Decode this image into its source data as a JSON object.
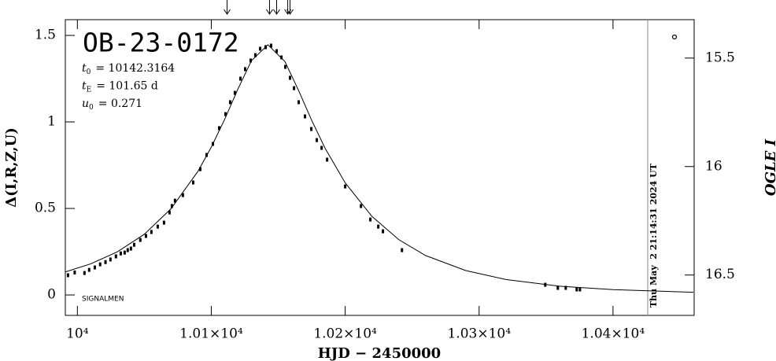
{
  "chart_data": {
    "type": "scatter",
    "title": "OB-23-0172",
    "xlabel": "HJD − 2450000",
    "ylabel": "Δ(I,R,Z,U)",
    "y2label": "OGLE I",
    "xlim": [
      9991,
      10460.6
    ],
    "ylim": [
      -0.118,
      1.591
    ],
    "y2lim": [
      16.686,
      15.323
    ],
    "xticks": [
      {
        "value": 10000,
        "label": "10⁴"
      },
      {
        "value": 10100,
        "label": "1.01×10⁴"
      },
      {
        "value": 10200,
        "label": "1.02×10⁴"
      },
      {
        "value": 10300,
        "label": "1.03×10⁴"
      },
      {
        "value": 10400,
        "label": "1.04×10⁴"
      }
    ],
    "yticks": [
      0,
      0.5,
      1,
      1.5
    ],
    "y2ticks": [
      15.5,
      16,
      16.5
    ],
    "params": [
      {
        "symbol": "t",
        "sub": "0",
        "text": "= 10142.3164"
      },
      {
        "symbol": "t",
        "sub": "E",
        "text": "= 101.65 d"
      },
      {
        "symbol": "u",
        "sub": "0",
        "text": "= 0.271"
      }
    ],
    "footnote": "SIGNALMEN",
    "timestamp": "Thu May  2 21:14:31 2024 UT",
    "timestamp_x": 10425.9,
    "arrows": [
      10111.8,
      10143.5,
      10148.8,
      10157.1,
      10158.8
    ],
    "series": [
      {
        "type": "scatter",
        "color": "#000000",
        "x": [
          9993,
          9998,
          10005.3,
          10008.8,
          10013,
          10017,
          10021,
          10024.7,
          10028.8,
          10032.4,
          10035.3,
          10037.6,
          10040,
          10042.4,
          10047,
          10051.2,
          10055.3,
          10060,
          10064.7,
          10068.8,
          10070.6,
          10072.9,
          10078.8,
          10086.5,
          10091.8,
          10096.5,
          10101.2,
          10105.9,
          10110.6,
          10114.1,
          10117.6,
          10121.8,
          10125.3,
          10129.4,
          10132.9,
          10136.5,
          10140.6,
          10144.7,
          10148.8,
          10152.4,
          10155.3,
          10158.8,
          10161.8,
          10165.3,
          10170,
          10174.7,
          10178.8,
          10182.4,
          10186.5,
          10200,
          10211.8,
          10218.8,
          10224.7,
          10228.2,
          10242.4,
          10349.4,
          10358.8,
          10364.7,
          10372.9,
          10375.3
        ],
        "values": [
          0.114,
          0.13,
          0.127,
          0.145,
          0.159,
          0.177,
          0.19,
          0.205,
          0.223,
          0.24,
          0.245,
          0.259,
          0.268,
          0.29,
          0.318,
          0.341,
          0.364,
          0.395,
          0.418,
          0.477,
          0.514,
          0.545,
          0.577,
          0.65,
          0.727,
          0.809,
          0.873,
          0.964,
          1.045,
          1.114,
          1.168,
          1.25,
          1.305,
          1.355,
          1.386,
          1.423,
          1.432,
          1.441,
          1.409,
          1.373,
          1.318,
          1.255,
          1.195,
          1.114,
          1.032,
          0.959,
          0.895,
          0.85,
          0.782,
          0.627,
          0.514,
          0.436,
          0.395,
          0.368,
          0.259,
          0.059,
          0.041,
          0.041,
          0.032,
          0.032
        ]
      },
      {
        "type": "line",
        "color": "#000000",
        "x": [
          9991,
          10010,
          10030,
          10050,
          10070,
          10090,
          10100,
          10110,
          10120,
          10130,
          10142.3164,
          10155,
          10165,
          10175,
          10185,
          10200,
          10220,
          10240,
          10260,
          10290,
          10320,
          10360,
          10400,
          10460
        ],
        "values": [
          0.133,
          0.18,
          0.25,
          0.351,
          0.499,
          0.714,
          0.854,
          1.015,
          1.192,
          1.354,
          1.446,
          1.349,
          1.185,
          1.009,
          0.848,
          0.648,
          0.454,
          0.32,
          0.228,
          0.141,
          0.0895,
          0.051,
          0.031,
          0.0157
        ]
      }
    ]
  }
}
